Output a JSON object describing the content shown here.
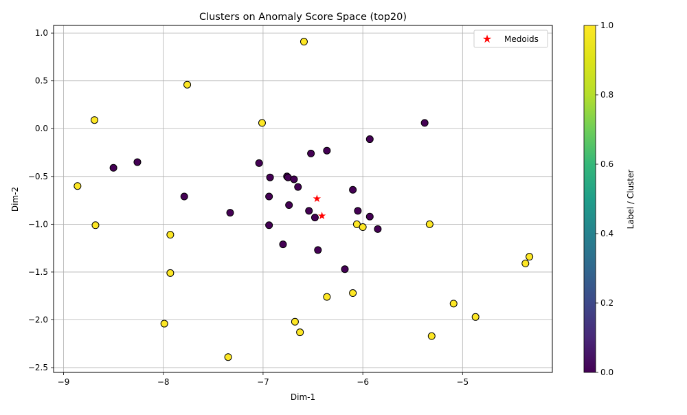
{
  "chart_data": {
    "type": "scatter",
    "title": "Clusters on Anomaly Score Space (top20)",
    "xlabel": "Dim-1",
    "ylabel": "Dim-2",
    "xlim": [
      -9.1,
      -4.1
    ],
    "ylim": [
      -2.55,
      1.08
    ],
    "xticks": [
      -9,
      -8,
      -7,
      -6,
      -5
    ],
    "yticks": [
      -2.5,
      -2.0,
      -1.5,
      -1.0,
      -0.5,
      0.0,
      0.5,
      1.0
    ],
    "grid": true,
    "legend_position": "top-right",
    "colorbar": {
      "label": "Label / Cluster",
      "min": 0.0,
      "max": 1.0,
      "ticks": [
        "0.0",
        "0.2",
        "0.4",
        "0.6",
        "0.8",
        "1.0"
      ],
      "colormap": "viridis"
    },
    "series": [
      {
        "label": 0,
        "color": "#440154",
        "points": [
          [
            -8.5,
            -0.41
          ],
          [
            -8.26,
            -0.35
          ],
          [
            -7.79,
            -0.71
          ],
          [
            -7.33,
            -0.88
          ],
          [
            -7.04,
            -0.36
          ],
          [
            -6.93,
            -0.51
          ],
          [
            -6.94,
            -0.71
          ],
          [
            -6.94,
            -1.01
          ],
          [
            -6.76,
            -0.5
          ],
          [
            -6.75,
            -0.51
          ],
          [
            -6.69,
            -0.53
          ],
          [
            -6.65,
            -0.61
          ],
          [
            -6.74,
            -0.8
          ],
          [
            -6.8,
            -1.21
          ],
          [
            -6.52,
            -0.26
          ],
          [
            -6.36,
            -0.23
          ],
          [
            -6.54,
            -0.86
          ],
          [
            -6.48,
            -0.93
          ],
          [
            -6.45,
            -1.27
          ],
          [
            -6.1,
            -0.64
          ],
          [
            -6.05,
            -0.86
          ],
          [
            -5.93,
            -0.11
          ],
          [
            -5.93,
            -0.92
          ],
          [
            -5.85,
            -1.05
          ],
          [
            -6.18,
            -1.47
          ],
          [
            -5.38,
            0.06
          ]
        ]
      },
      {
        "label": 1,
        "color": "#fde725",
        "points": [
          [
            -8.69,
            0.09
          ],
          [
            -8.86,
            -0.6
          ],
          [
            -8.68,
            -1.01
          ],
          [
            -7.76,
            0.46
          ],
          [
            -7.93,
            -1.11
          ],
          [
            -7.93,
            -1.51
          ],
          [
            -7.99,
            -2.04
          ],
          [
            -7.01,
            0.06
          ],
          [
            -6.59,
            0.91
          ],
          [
            -6.06,
            -1.0
          ],
          [
            -6.0,
            -1.03
          ],
          [
            -5.33,
            -1.0
          ],
          [
            -6.36,
            -1.76
          ],
          [
            -6.1,
            -1.72
          ],
          [
            -6.68,
            -2.02
          ],
          [
            -6.63,
            -2.13
          ],
          [
            -7.35,
            -2.39
          ],
          [
            -5.09,
            -1.83
          ],
          [
            -4.87,
            -1.97
          ],
          [
            -5.31,
            -2.17
          ],
          [
            -4.33,
            -1.34
          ],
          [
            -4.37,
            -1.41
          ]
        ]
      }
    ],
    "medoids": {
      "name": "Medoids",
      "color": "#ff0000",
      "points": [
        [
          -6.46,
          -0.73
        ],
        [
          -6.41,
          -0.91
        ]
      ]
    }
  }
}
